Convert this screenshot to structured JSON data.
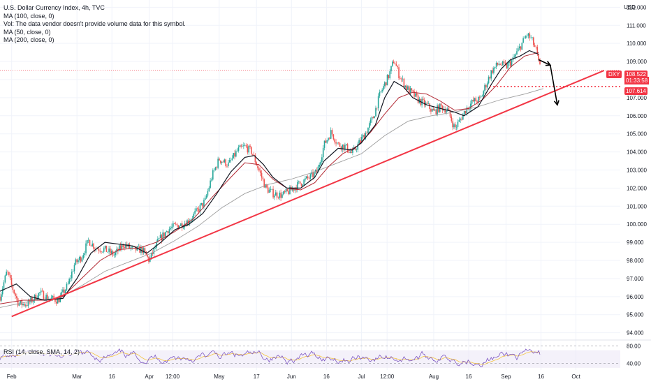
{
  "legend": {
    "title": "U.S. Dollar Currency Index, 4h, TVC",
    "lines": [
      "MA (100, close, 0)",
      "Vol: The data vendor doesn't provide volume data for this symbol.",
      "MA (50, close, 0)",
      "MA (200, close, 0)"
    ]
  },
  "rsi_label": "RSI (14, close, SMA, 14, 2)",
  "axis_unit": "USD",
  "price_tags": {
    "symbol": "DXY",
    "last": "108.522",
    "countdown": "01:33:58",
    "level": "107.614"
  },
  "colors": {
    "trendline": "#f23645",
    "level_line": "#f23645",
    "ma100": "#131722",
    "ma50": "#b22833",
    "ma200": "#9e9e9e",
    "candle_up": "#26a69a",
    "candle_down": "#ef5350",
    "rsi_line": "#7e57c2",
    "rsi_ma": "#f5c542"
  },
  "chart_data": {
    "type": "candlestick",
    "symbol": "DXY",
    "timeframe": "4h",
    "y_ticks": [
      "112.000",
      "111.000",
      "110.000",
      "109.000",
      "108.000",
      "107.000",
      "106.000",
      "105.000",
      "104.000",
      "103.000",
      "102.000",
      "101.000",
      "100.000",
      "99.000",
      "98.000",
      "97.000",
      "96.000",
      "95.000",
      "94.000"
    ],
    "y_range": [
      93.6,
      112.4
    ],
    "x_ticks": [
      {
        "label": "Feb",
        "t": 0
      },
      {
        "label": "Mar",
        "t": 28
      },
      {
        "label": "16",
        "t": 43
      },
      {
        "label": "Apr",
        "t": 59
      },
      {
        "label": "12:00",
        "t": 69
      },
      {
        "label": "May",
        "t": 89
      },
      {
        "label": "17",
        "t": 105
      },
      {
        "label": "Jun",
        "t": 120
      },
      {
        "label": "16",
        "t": 135
      },
      {
        "label": "Jul",
        "t": 150
      },
      {
        "label": "12:00",
        "t": 161
      },
      {
        "label": "Aug",
        "t": 181
      },
      {
        "label": "16",
        "t": 196
      },
      {
        "label": "Sep",
        "t": 212
      },
      {
        "label": "16",
        "t": 227
      },
      {
        "label": "Oct",
        "t": 242
      }
    ],
    "x_range": [
      -5,
      261
    ],
    "close_path": [
      [
        -5,
        96.0
      ],
      [
        -2,
        97.4
      ],
      [
        0,
        96.6
      ],
      [
        3,
        95.6
      ],
      [
        7,
        95.6
      ],
      [
        12,
        96.2
      ],
      [
        16,
        95.9
      ],
      [
        20,
        95.8
      ],
      [
        24,
        96.6
      ],
      [
        27,
        97.8
      ],
      [
        30,
        98.2
      ],
      [
        33,
        99.1
      ],
      [
        36,
        98.7
      ],
      [
        40,
        98.6
      ],
      [
        44,
        98.3
      ],
      [
        48,
        98.9
      ],
      [
        52,
        98.6
      ],
      [
        56,
        98.6
      ],
      [
        59,
        98.0
      ],
      [
        63,
        99.1
      ],
      [
        67,
        99.7
      ],
      [
        70,
        99.9
      ],
      [
        73,
        100.0
      ],
      [
        76,
        100.2
      ],
      [
        80,
        100.8
      ],
      [
        83,
        101.3
      ],
      [
        86,
        102.7
      ],
      [
        89,
        103.6
      ],
      [
        93,
        103.3
      ],
      [
        97,
        104.1
      ],
      [
        100,
        104.3
      ],
      [
        103,
        104.0
      ],
      [
        106,
        103.0
      ],
      [
        109,
        102.0
      ],
      [
        112,
        101.7
      ],
      [
        116,
        101.6
      ],
      [
        120,
        101.9
      ],
      [
        124,
        102.3
      ],
      [
        128,
        102.6
      ],
      [
        131,
        102.9
      ],
      [
        134,
        104.4
      ],
      [
        137,
        105.1
      ],
      [
        140,
        104.4
      ],
      [
        143,
        104.3
      ],
      [
        146,
        103.9
      ],
      [
        149,
        104.5
      ],
      [
        152,
        105.1
      ],
      [
        155,
        105.9
      ],
      [
        158,
        107.2
      ],
      [
        162,
        108.3
      ],
      [
        164,
        109.1
      ],
      [
        166,
        108.3
      ],
      [
        169,
        107.6
      ],
      [
        172,
        107.2
      ],
      [
        175,
        106.8
      ],
      [
        178,
        106.6
      ],
      [
        181,
        106.2
      ],
      [
        184,
        106.5
      ],
      [
        187,
        106.3
      ],
      [
        190,
        105.3
      ],
      [
        192,
        105.7
      ],
      [
        195,
        106.4
      ],
      [
        198,
        106.8
      ],
      [
        201,
        106.9
      ],
      [
        203,
        107.6
      ],
      [
        206,
        108.5
      ],
      [
        209,
        108.9
      ],
      [
        212,
        108.7
      ],
      [
        215,
        109.1
      ],
      [
        218,
        109.8
      ],
      [
        221,
        110.5
      ],
      [
        223,
        110.2
      ],
      [
        225,
        109.6
      ],
      [
        226,
        108.9
      ],
      [
        227,
        108.52
      ]
    ],
    "ma50_path": [
      [
        -5,
        95.6
      ],
      [
        5,
        95.8
      ],
      [
        15,
        95.8
      ],
      [
        22,
        96.0
      ],
      [
        30,
        97.0
      ],
      [
        38,
        98.0
      ],
      [
        46,
        98.6
      ],
      [
        55,
        98.7
      ],
      [
        62,
        99.0
      ],
      [
        70,
        99.6
      ],
      [
        78,
        100.3
      ],
      [
        86,
        101.5
      ],
      [
        94,
        102.6
      ],
      [
        100,
        103.4
      ],
      [
        106,
        103.3
      ],
      [
        112,
        102.5
      ],
      [
        118,
        102.0
      ],
      [
        124,
        101.9
      ],
      [
        130,
        102.3
      ],
      [
        136,
        103.2
      ],
      [
        142,
        103.9
      ],
      [
        148,
        104.3
      ],
      [
        154,
        105.1
      ],
      [
        160,
        106.1
      ],
      [
        166,
        107.0
      ],
      [
        172,
        107.3
      ],
      [
        178,
        107.2
      ],
      [
        184,
        106.8
      ],
      [
        190,
        106.3
      ],
      [
        196,
        106.4
      ],
      [
        202,
        106.9
      ],
      [
        208,
        107.7
      ],
      [
        214,
        108.7
      ],
      [
        220,
        109.3
      ],
      [
        226,
        109.5
      ]
    ],
    "ma100_path": [
      [
        -5,
        96.3
      ],
      [
        2,
        96.7
      ],
      [
        8,
        96.0
      ],
      [
        14,
        95.8
      ],
      [
        22,
        95.9
      ],
      [
        28,
        97.0
      ],
      [
        34,
        98.4
      ],
      [
        40,
        99.0
      ],
      [
        46,
        98.9
      ],
      [
        52,
        98.8
      ],
      [
        58,
        98.4
      ],
      [
        64,
        99.0
      ],
      [
        70,
        99.7
      ],
      [
        76,
        100.0
      ],
      [
        82,
        100.6
      ],
      [
        88,
        101.7
      ],
      [
        94,
        102.9
      ],
      [
        100,
        103.7
      ],
      [
        104,
        103.8
      ],
      [
        108,
        103.3
      ],
      [
        112,
        102.6
      ],
      [
        118,
        102.0
      ],
      [
        124,
        102.0
      ],
      [
        130,
        102.6
      ],
      [
        134,
        103.5
      ],
      [
        140,
        104.2
      ],
      [
        146,
        104.1
      ],
      [
        150,
        104.5
      ],
      [
        156,
        105.5
      ],
      [
        160,
        107.0
      ],
      [
        164,
        107.9
      ],
      [
        168,
        107.6
      ],
      [
        172,
        107.0
      ],
      [
        178,
        106.6
      ],
      [
        184,
        106.4
      ],
      [
        190,
        106.2
      ],
      [
        194,
        106.0
      ],
      [
        200,
        106.5
      ],
      [
        206,
        107.8
      ],
      [
        210,
        108.6
      ],
      [
        214,
        109.1
      ],
      [
        218,
        109.3
      ],
      [
        222,
        109.6
      ],
      [
        226,
        109.4
      ]
    ],
    "ma200_path": [
      [
        -5,
        95.4
      ],
      [
        10,
        95.8
      ],
      [
        20,
        95.9
      ],
      [
        30,
        96.6
      ],
      [
        40,
        97.4
      ],
      [
        50,
        97.9
      ],
      [
        60,
        98.4
      ],
      [
        70,
        99.1
      ],
      [
        80,
        99.9
      ],
      [
        90,
        100.9
      ],
      [
        100,
        101.7
      ],
      [
        110,
        102.2
      ],
      [
        120,
        102.5
      ],
      [
        130,
        102.9
      ],
      [
        140,
        103.4
      ],
      [
        150,
        103.9
      ],
      [
        160,
        104.9
      ],
      [
        170,
        105.7
      ],
      [
        180,
        106.0
      ],
      [
        190,
        106.2
      ],
      [
        200,
        106.5
      ],
      [
        210,
        106.9
      ],
      [
        220,
        107.2
      ],
      [
        228,
        107.5
      ]
    ],
    "trendline": {
      "from": [
        0,
        94.9
      ],
      "to": [
        254,
        108.5
      ]
    },
    "level_line": {
      "price": 107.614,
      "from_t": 205,
      "style": "dotted"
    },
    "last_price": 108.522,
    "arrow_path": [
      [
        226,
        109.1
      ],
      [
        231,
        108.8
      ],
      [
        234,
        106.6
      ]
    ],
    "rsi": {
      "levels": [
        80.0,
        40.0
      ],
      "tick_labels": [
        "80.00",
        "40.00"
      ],
      "range": [
        25,
        90
      ],
      "band": [
        30,
        70
      ]
    }
  }
}
